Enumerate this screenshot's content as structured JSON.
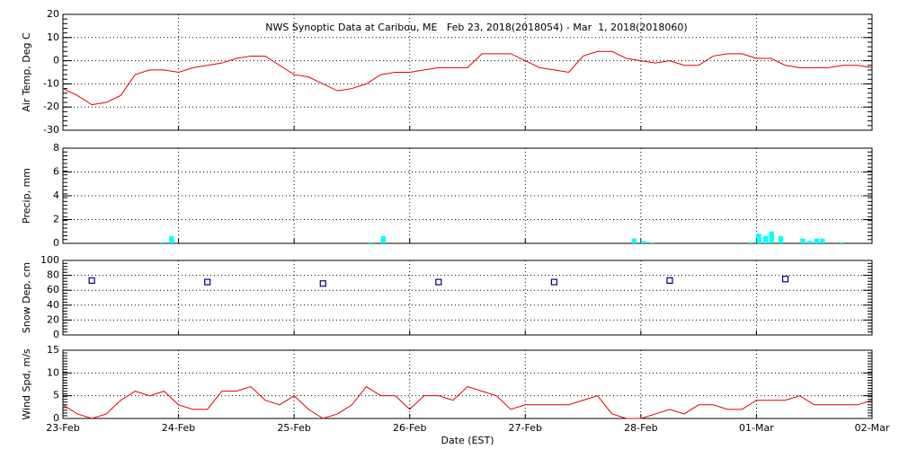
{
  "chart_data": [
    {
      "type": "line",
      "title": "NWS Synoptic Data at Caribou, ME   Feb 23, 2018(2018054) - Mar  1, 2018(2018060)",
      "ylabel": "Air Temp, Deg C",
      "color": "#e00000",
      "grid": true,
      "ylim": [
        -30,
        20
      ],
      "yticks": [
        -30,
        -20,
        -10,
        0,
        10,
        20
      ],
      "x": [
        0,
        0.125,
        0.25,
        0.375,
        0.5,
        0.625,
        0.75,
        0.875,
        1,
        1.125,
        1.25,
        1.375,
        1.5,
        1.625,
        1.75,
        1.875,
        2,
        2.125,
        2.25,
        2.375,
        2.5,
        2.625,
        2.75,
        2.875,
        3,
        3.125,
        3.25,
        3.375,
        3.5,
        3.625,
        3.75,
        3.875,
        4,
        4.125,
        4.25,
        4.375,
        4.5,
        4.625,
        4.75,
        4.875,
        5,
        5.125,
        5.25,
        5.375,
        5.5,
        5.625,
        5.75,
        5.875,
        6,
        6.125,
        6.25,
        6.375,
        6.5,
        6.625,
        6.75,
        6.875,
        7
      ],
      "values": [
        -12,
        -15,
        -19,
        -18,
        -15,
        -6,
        -4,
        -4,
        -5,
        -3,
        -2,
        -1,
        1,
        2,
        2,
        -2,
        -6,
        -7,
        -10,
        -13,
        -12,
        -10,
        -6,
        -5,
        -5,
        -4,
        -3,
        -3,
        -3,
        3,
        3,
        3,
        0,
        -3,
        -4,
        -5,
        2,
        4,
        4,
        1,
        0,
        -1,
        0,
        -2,
        -2,
        2,
        3,
        3,
        1,
        1,
        -2,
        -3,
        -3,
        -3,
        -2,
        -2,
        -3
      ]
    },
    {
      "type": "bar",
      "ylabel": "Precip, mm",
      "color": "#00ffff",
      "grid": true,
      "ylim": [
        0,
        8
      ],
      "yticks": [
        0,
        2,
        4,
        6,
        8
      ],
      "x": [
        0.84,
        0.92,
        2.64,
        2.75,
        4.92,
        5.0,
        5.07,
        5.93,
        6.0,
        6.06,
        6.11,
        6.19,
        6.38,
        6.44,
        6.5,
        6.55,
        6.72
      ],
      "values": [
        0.1,
        0.6,
        0.1,
        0.6,
        0.4,
        0.2,
        0.1,
        0.1,
        0.8,
        0.6,
        1.0,
        0.6,
        0.4,
        0.2,
        0.4,
        0.4,
        0.1
      ]
    },
    {
      "type": "scatter",
      "ylabel": "Snow Dep, cm",
      "color": "#000080",
      "grid": true,
      "ylim": [
        0,
        100
      ],
      "yticks": [
        0,
        20,
        40,
        60,
        80,
        100
      ],
      "x": [
        0.25,
        1.25,
        2.25,
        3.25,
        4.25,
        5.25,
        6.25
      ],
      "values": [
        73,
        71,
        69,
        71,
        71,
        73,
        75
      ]
    },
    {
      "type": "line",
      "ylabel": "Wind Spd, m/s",
      "xlabel": "Date (EST)",
      "color": "#e00000",
      "grid": true,
      "ylim": [
        0,
        15
      ],
      "yticks": [
        0,
        5,
        10,
        15
      ],
      "xlim": [
        0,
        7
      ],
      "xticks": [
        {
          "value": 0,
          "label": "23-Feb"
        },
        {
          "value": 1,
          "label": "24-Feb"
        },
        {
          "value": 2,
          "label": "25-Feb"
        },
        {
          "value": 3,
          "label": "26-Feb"
        },
        {
          "value": 4,
          "label": "27-Feb"
        },
        {
          "value": 5,
          "label": "28-Feb"
        },
        {
          "value": 6,
          "label": "01-Mar"
        },
        {
          "value": 7,
          "label": "02-Mar"
        }
      ],
      "x": [
        0,
        0.125,
        0.25,
        0.375,
        0.5,
        0.625,
        0.75,
        0.875,
        1,
        1.125,
        1.25,
        1.375,
        1.5,
        1.625,
        1.75,
        1.875,
        2,
        2.125,
        2.25,
        2.375,
        2.5,
        2.625,
        2.75,
        2.875,
        3,
        3.125,
        3.25,
        3.375,
        3.5,
        3.625,
        3.75,
        3.875,
        4,
        4.125,
        4.25,
        4.375,
        4.5,
        4.625,
        4.75,
        4.875,
        5,
        5.125,
        5.25,
        5.375,
        5.5,
        5.625,
        5.75,
        5.875,
        6,
        6.125,
        6.25,
        6.375,
        6.5,
        6.625,
        6.75,
        6.875,
        7
      ],
      "values": [
        3,
        1,
        0,
        1,
        4,
        6,
        5,
        6,
        3,
        2,
        2,
        6,
        6,
        7,
        4,
        3,
        5,
        2,
        0,
        1,
        3,
        7,
        5,
        5,
        2,
        5,
        5,
        4,
        7,
        6,
        5,
        2,
        3,
        3,
        3,
        3,
        4,
        5,
        1,
        0,
        0,
        1,
        2,
        1,
        3,
        3,
        2,
        2,
        4,
        4,
        4,
        5,
        3,
        3,
        3,
        3,
        4
      ]
    }
  ]
}
